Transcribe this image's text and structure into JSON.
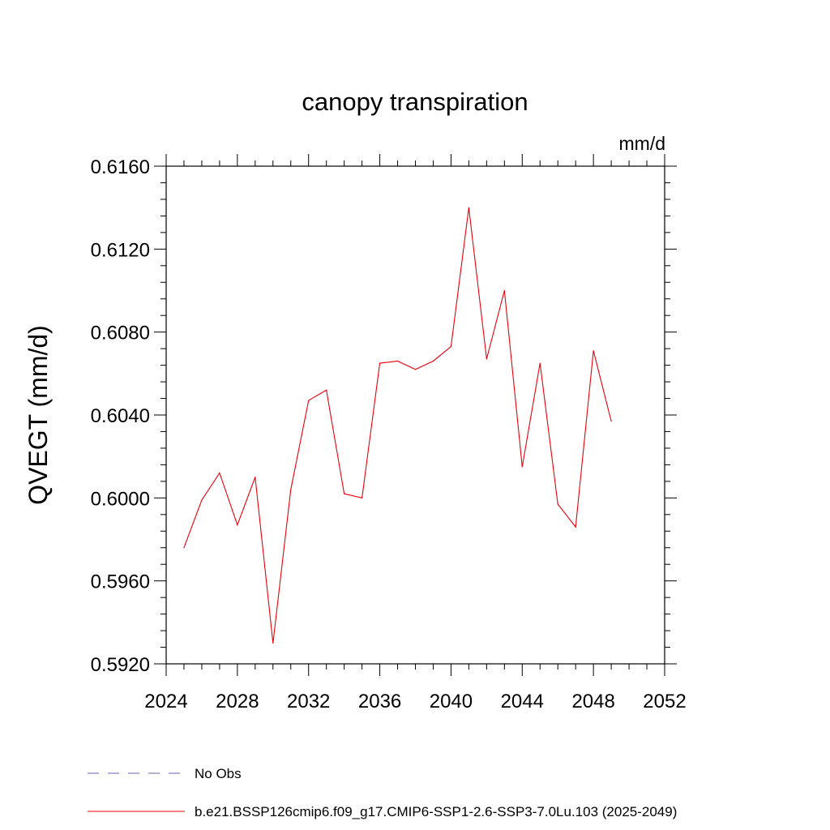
{
  "chart_data": {
    "type": "line",
    "title": "canopy transpiration",
    "units": "mm/d",
    "ylabel": "QVEGT  (mm/d)",
    "xlabel": "",
    "xlim": [
      2024,
      2052
    ],
    "ylim": [
      0.592,
      0.616
    ],
    "x_ticks": [
      "2024",
      "2028",
      "2032",
      "2036",
      "2040",
      "2044",
      "2048",
      "2052"
    ],
    "y_ticks": [
      "0.5920",
      "0.5960",
      "0.6000",
      "0.6040",
      "0.6080",
      "0.6120",
      "0.6160"
    ],
    "grid": false,
    "legend_placement": "bottom",
    "series": [
      {
        "name": "b.e21.BSSP126cmip6.f09_g17.CMIP6-SSP1-2.6-SSP3-7.0Lu.103 (2025-2049)",
        "color": "#e8000b",
        "x": [
          2025,
          2026,
          2027,
          2028,
          2029,
          2030,
          2031,
          2032,
          2033,
          2034,
          2035,
          2036,
          2037,
          2038,
          2039,
          2040,
          2041,
          2042,
          2043,
          2044,
          2045,
          2046,
          2047,
          2048,
          2049
        ],
        "values": [
          0.5976,
          0.5999,
          0.6012,
          0.5987,
          0.601,
          0.593,
          0.6004,
          0.6047,
          0.6052,
          0.6002,
          0.6,
          0.6065,
          0.6066,
          0.6062,
          0.6066,
          0.6073,
          0.614,
          0.6067,
          0.61,
          0.6015,
          0.6065,
          0.5997,
          0.5986,
          0.6071,
          0.6037
        ]
      }
    ],
    "legend": [
      {
        "label": "No Obs",
        "color": "#6b5fb5",
        "style": "dashed"
      },
      {
        "label": "b.e21.BSSP126cmip6.f09_g17.CMIP6-SSP1-2.6-SSP3-7.0Lu.103 (2025-2049)",
        "color": "#e8000b",
        "style": "solid"
      }
    ]
  }
}
